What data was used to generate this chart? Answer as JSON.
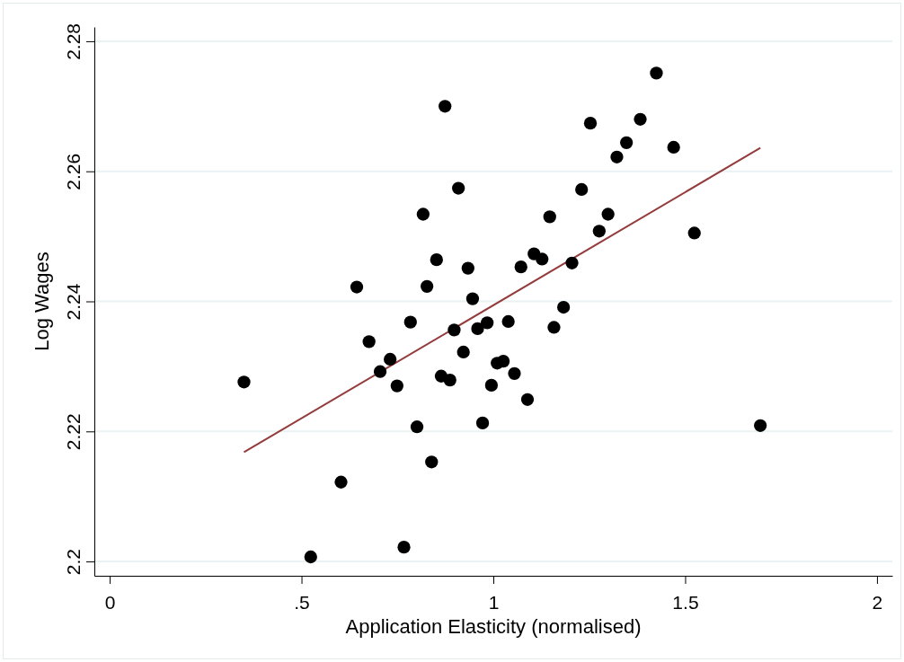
{
  "chart_data": {
    "type": "scatter",
    "xlabel": "Application Elasticity (normalised)",
    "ylabel": "Log Wages",
    "xlim": [
      -0.04,
      2.04
    ],
    "xticks": [
      0,
      {
        "value": 0.5,
        "label": ".5"
      },
      1,
      1.5,
      2
    ],
    "ylim": [
      2.1978,
      2.2822
    ],
    "yticks": [
      2.2,
      2.22,
      2.24,
      2.26,
      2.28
    ],
    "grid": "y",
    "marker": "circle",
    "series": [
      {
        "color": "#000000",
        "x": [
          0.874,
          0.909,
          0.817,
          1.147,
          0.852,
          1.106,
          1.127,
          0.934,
          1.072,
          0.644,
          0.827,
          0.946,
          1.425,
          1.253,
          1.383,
          1.347,
          1.322,
          1.47,
          1.23,
          1.299,
          1.276,
          1.524,
          1.205,
          1.183,
          0.784,
          0.676,
          0.898,
          0.959,
          0.984,
          1.039,
          1.158,
          0.731,
          0.705,
          0.922,
          0.35,
          0.749,
          0.864,
          0.887,
          1.01,
          1.026,
          1.055,
          0.995,
          1.089,
          0.801,
          0.972,
          0.839,
          0.603,
          0.767,
          0.524,
          1.696
        ],
        "values": [
          2.27,
          2.2574,
          2.2534,
          2.253,
          2.2464,
          2.2473,
          2.2465,
          2.2451,
          2.2453,
          2.2422,
          2.2423,
          2.2404,
          2.2751,
          2.2674,
          2.268,
          2.2644,
          2.2622,
          2.2637,
          2.2572,
          2.2534,
          2.2508,
          2.2505,
          2.2459,
          2.2391,
          2.2368,
          2.2338,
          2.2356,
          2.2358,
          2.2367,
          2.2369,
          2.236,
          2.2311,
          2.2292,
          2.2322,
          2.2276,
          2.227,
          2.2285,
          2.2279,
          2.2305,
          2.2308,
          2.2289,
          2.2271,
          2.2249,
          2.2207,
          2.2213,
          2.2153,
          2.2122,
          2.2022,
          2.2007,
          2.2209
        ]
      },
      {
        "type": "line",
        "marker": "none",
        "color": "#943c3c",
        "x": [
          0.35,
          1.696
        ],
        "values": [
          2.2168,
          2.2636
        ]
      }
    ]
  }
}
